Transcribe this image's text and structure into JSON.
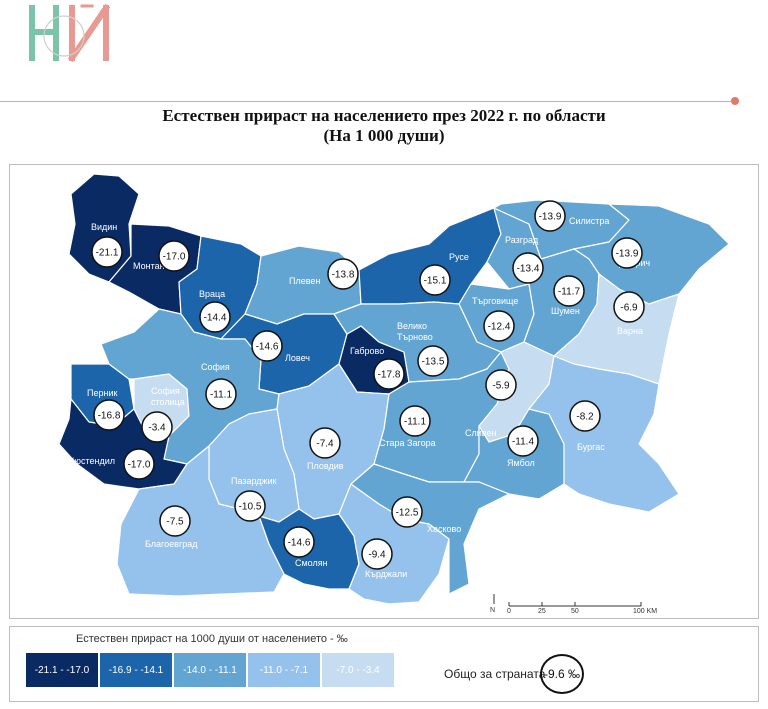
{
  "title_line1": "Естествен прираст на населението през 2022 г. по области",
  "title_line2": "(На 1 000 души)",
  "colors": {
    "bin1": "#0a2a64",
    "bin2": "#1d65ab",
    "bin3": "#62a5d3",
    "bin4": "#95c2ec",
    "bin5": "#c5dcf1"
  },
  "regions": [
    {
      "name": "Видин",
      "value": "-21.1",
      "bin": 1
    },
    {
      "name": "Монтана",
      "value": "-17.0",
      "bin": 1
    },
    {
      "name": "Враца",
      "value": "-14.4",
      "bin": 2
    },
    {
      "name": "Плевен",
      "value": "-13.8",
      "bin": 3
    },
    {
      "name": "Русе",
      "value": "-15.1",
      "bin": 2
    },
    {
      "name": "Разград",
      "value": "-13.4",
      "bin": 3
    },
    {
      "name": "Силистра",
      "value": "-13.9",
      "bin": 3
    },
    {
      "name": "Добрич",
      "value": "-13.9",
      "bin": 3
    },
    {
      "name": "Търговище",
      "value": "-12.4",
      "bin": 3
    },
    {
      "name": "Шумен",
      "value": "-11.7",
      "bin": 3
    },
    {
      "name": "Варна",
      "value": "-6.9",
      "bin": 5
    },
    {
      "name": "Ловеч",
      "value": "-14.6",
      "bin": 2
    },
    {
      "name": "Габрово",
      "value": "-17.8",
      "bin": 1
    },
    {
      "name": "Велико Търново",
      "value": "-13.5",
      "bin": 3
    },
    {
      "name": "Перник",
      "value": "-16.8",
      "bin": 2
    },
    {
      "name": "София столица",
      "value": "-3.4",
      "bin": 5
    },
    {
      "name": "София",
      "value": "-11.1",
      "bin": 3
    },
    {
      "name": "Кюстендил",
      "value": "-17.0",
      "bin": 1
    },
    {
      "name": "Пловдив",
      "value": "-7.4",
      "bin": 4
    },
    {
      "name": "Стара Загора",
      "value": "-11.1",
      "bin": 3
    },
    {
      "name": "Сливен",
      "value": "-5.9",
      "bin": 5
    },
    {
      "name": "Ямбол",
      "value": "-11.4",
      "bin": 3
    },
    {
      "name": "Бургас",
      "value": "-8.2",
      "bin": 4
    },
    {
      "name": "Пазарджик",
      "value": "-10.5",
      "bin": 4
    },
    {
      "name": "Благоевград",
      "value": "-7.5",
      "bin": 4
    },
    {
      "name": "Смолян",
      "value": "-14.6",
      "bin": 2
    },
    {
      "name": "Кърджали",
      "value": "-9.4",
      "bin": 4
    },
    {
      "name": "Хасково",
      "value": "-12.5",
      "bin": 3
    }
  ],
  "scale": {
    "north": "N",
    "ticks": [
      "0",
      "25",
      "50",
      "100 KM"
    ]
  },
  "legend": {
    "title": "Естествен прираст на 1000 души от населението - ‰",
    "bins": [
      "-21.1 - -17.0",
      "-16.9 - -14.1",
      "-14.0 - -11.1",
      "-11.0 - -7.1",
      "-7.0 - -3.4"
    ]
  },
  "total": {
    "label": "Общо за страната",
    "value": "-9.6 ‰"
  }
}
